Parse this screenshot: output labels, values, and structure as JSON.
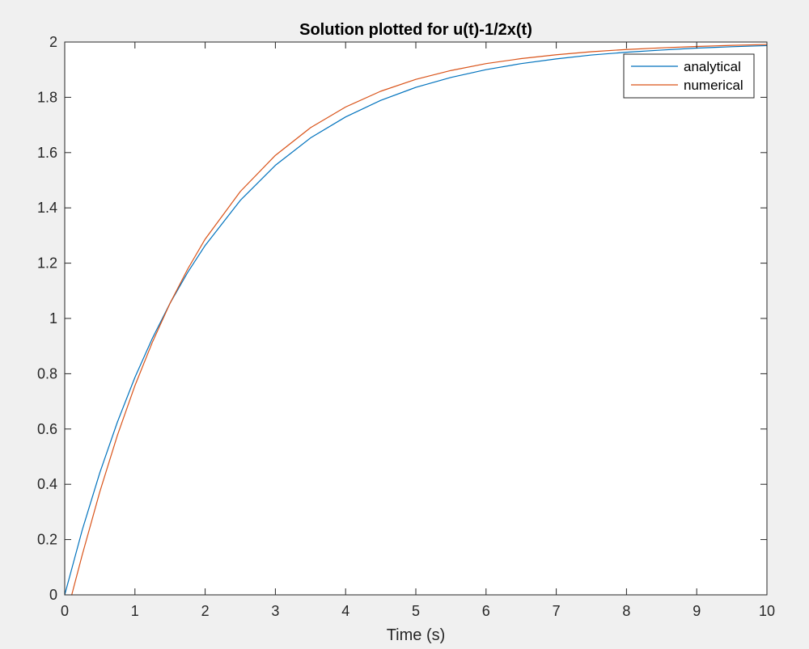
{
  "chart_data": {
    "type": "line",
    "title": "Solution plotted for u(t)-1/2x(t)",
    "xlabel": "Time (s)",
    "ylabel": "",
    "xlim": [
      0,
      10
    ],
    "ylim": [
      0,
      2
    ],
    "x_ticks": [
      0,
      1,
      2,
      3,
      4,
      5,
      6,
      7,
      8,
      9,
      10
    ],
    "y_ticks": [
      0,
      0.2,
      0.4,
      0.6,
      0.8,
      1,
      1.2,
      1.4,
      1.6,
      1.8,
      2
    ],
    "x_tick_labels": [
      "0",
      "1",
      "2",
      "3",
      "4",
      "5",
      "6",
      "7",
      "8",
      "9",
      "10"
    ],
    "y_tick_labels": [
      "0",
      "0.2",
      "0.4",
      "0.6",
      "0.8",
      "1",
      "1.2",
      "1.4",
      "1.6",
      "1.8",
      "2"
    ],
    "grid": false,
    "legend_position": "top-right",
    "series": [
      {
        "name": "analytical",
        "color": "#0072BD",
        "x": [
          0,
          0.25,
          0.5,
          0.75,
          1,
          1.25,
          1.5,
          1.75,
          2,
          2.5,
          3,
          3.5,
          4,
          4.5,
          5,
          5.5,
          6,
          6.5,
          7,
          7.5,
          8,
          8.5,
          9,
          9.5,
          10
        ],
        "y": [
          0,
          0.235,
          0.442,
          0.625,
          0.787,
          0.929,
          1.055,
          1.166,
          1.264,
          1.427,
          1.554,
          1.653,
          1.729,
          1.789,
          1.836,
          1.872,
          1.9,
          1.922,
          1.939,
          1.953,
          1.963,
          1.971,
          1.978,
          1.983,
          1.987
        ]
      },
      {
        "name": "numerical",
        "color": "#D95319",
        "x": [
          0.1,
          0.25,
          0.5,
          0.75,
          1,
          1.25,
          1.5,
          1.75,
          2,
          2.5,
          3,
          3.5,
          4,
          4.5,
          5,
          5.5,
          6,
          6.5,
          7,
          7.5,
          8,
          8.5,
          9,
          9.5,
          10
        ],
        "y": [
          0,
          0.145,
          0.373,
          0.577,
          0.757,
          0.915,
          1.055,
          1.178,
          1.287,
          1.459,
          1.59,
          1.69,
          1.765,
          1.822,
          1.865,
          1.897,
          1.922,
          1.94,
          1.954,
          1.965,
          1.973,
          1.979,
          1.984,
          1.988,
          1.991
        ]
      }
    ]
  },
  "colors": {
    "figure_background": "#f0f0f0",
    "axes_background": "#ffffff",
    "axes_edge": "#262626"
  }
}
